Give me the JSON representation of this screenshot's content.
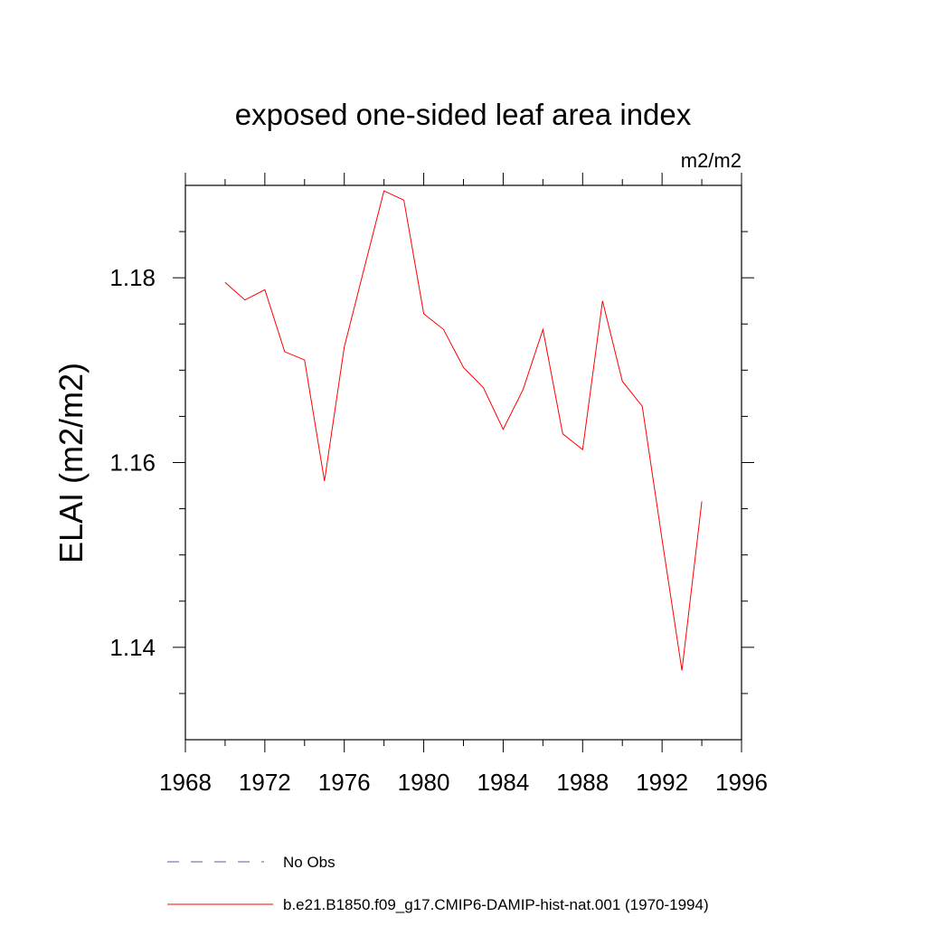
{
  "chart_data": {
    "type": "line",
    "title": "exposed one-sided leaf area index",
    "units": "m2/m2",
    "ylabel": "ELAI  (m2/m2)",
    "xlabel": "",
    "xlim": [
      1968,
      1996
    ],
    "ylim": [
      1.13,
      1.19
    ],
    "xticks": [
      1968,
      1972,
      1976,
      1980,
      1984,
      1988,
      1992,
      1996
    ],
    "xtick_labels": [
      "1968",
      "1972",
      "1976",
      "1980",
      "1984",
      "1988",
      "1992",
      "1996"
    ],
    "xminor_step": 2,
    "yticks": [
      1.14,
      1.16,
      1.18
    ],
    "ytick_labels": [
      "1.14",
      "1.16",
      "1.18"
    ],
    "yminor_step": 0.005,
    "grid": false,
    "legend_position": "bottom",
    "series": [
      {
        "name": "No Obs",
        "color": "#5a5aa0",
        "dashed": true,
        "x": [],
        "values": []
      },
      {
        "name": "b.e21.B1850.f09_g17.CMIP6-DAMIP-hist-nat.001 (1970-1994)",
        "color": "#ff0000",
        "dashed": false,
        "x": [
          1970,
          1971,
          1972,
          1973,
          1974,
          1975,
          1976,
          1977,
          1978,
          1979,
          1980,
          1981,
          1982,
          1983,
          1984,
          1985,
          1986,
          1987,
          1988,
          1989,
          1990,
          1991,
          1992,
          1993,
          1994
        ],
        "values": [
          1.1795,
          1.1776,
          1.1787,
          1.172,
          1.1711,
          1.158,
          1.1725,
          1.181,
          1.1894,
          1.1884,
          1.1761,
          1.1744,
          1.1703,
          1.1681,
          1.1636,
          1.1679,
          1.1744,
          1.1631,
          1.1614,
          1.1775,
          1.1688,
          1.1661,
          1.1517,
          1.1375,
          1.1558
        ]
      }
    ]
  }
}
